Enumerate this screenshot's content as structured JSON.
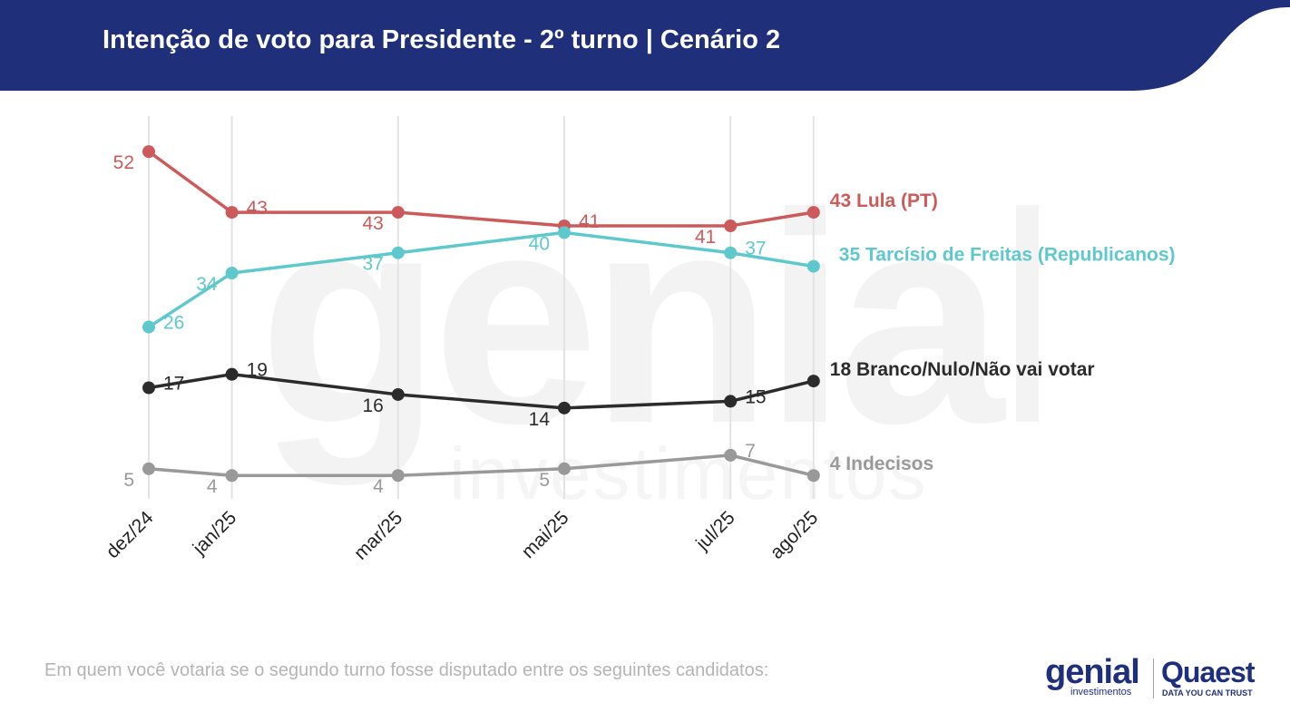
{
  "header": {
    "title": "Intenção de voto para Presidente - 2º turno | Cenário 2",
    "bg_color": "#1f2f7a"
  },
  "watermark": {
    "word": "genial",
    "sub": "investimentos"
  },
  "chart_data": {
    "type": "line",
    "categories": [
      "dez/24",
      "jan/25",
      "mar/25",
      "mai/25",
      "jul/25",
      "ago/25"
    ],
    "x_months": [
      0,
      1,
      3,
      5,
      7,
      8
    ],
    "ylim": [
      0,
      60
    ],
    "grid": "vertical",
    "legend": "end-of-line labels",
    "series": [
      {
        "name": "Lula (PT)",
        "end_label": "43 Lula (PT)",
        "color": "#cc5a5a",
        "values": [
          52,
          43,
          43,
          41,
          41,
          43
        ],
        "label_pos": [
          "left",
          "right",
          "left",
          "right",
          "left",
          null
        ]
      },
      {
        "name": "Tarcísio de Freitas (Republicanos)",
        "end_label": "35 Tarcísio de Freitas (Republicanos)",
        "color": "#5ec8cc",
        "values": [
          26,
          34,
          37,
          40,
          37,
          35
        ],
        "label_pos": [
          "right",
          "left",
          "left",
          "left",
          "right",
          null
        ]
      },
      {
        "name": "Branco/Nulo/Não vai votar",
        "end_label": "18 Branco/Nulo/Não vai votar",
        "color": "#2b2b2b",
        "values": [
          17,
          19,
          16,
          14,
          15,
          18
        ],
        "label_pos": [
          "right",
          "right",
          "left",
          "left",
          "right",
          null
        ]
      },
      {
        "name": "Indecisos",
        "end_label": "4 Indecisos",
        "color": "#999999",
        "values": [
          5,
          4,
          4,
          5,
          7,
          4
        ],
        "label_pos": [
          "left",
          "left",
          "left",
          "left",
          "right",
          null
        ]
      }
    ]
  },
  "footnote": "Em quem você votaria se o segundo turno fosse disputado entre os seguintes candidatos:",
  "logos": {
    "genial": "genial",
    "genial_sub": "investimentos",
    "quaest": "Quaest",
    "quaest_sub": "DATA YOU CAN TRUST"
  }
}
